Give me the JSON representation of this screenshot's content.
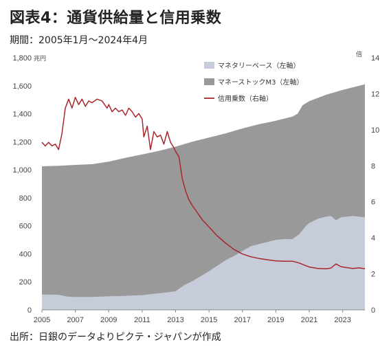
{
  "header": {
    "title": "図表4：通貨供給量と信用乗数",
    "subtitle": "期間：2005年1月～2024年4月"
  },
  "footer": {
    "source": "出所：日銀のデータよりピクテ・ジャパンが作成"
  },
  "chart_data": {
    "type": "area",
    "left_unit": "兆円",
    "right_unit": "倍",
    "x_ticks": [
      "2005",
      "2007",
      "2009",
      "2011",
      "2013",
      "2015",
      "2017",
      "2019",
      "2021",
      "2023"
    ],
    "left_ticks": [
      "0",
      "200",
      "400",
      "600",
      "800",
      "1,000",
      "1,200",
      "1,400",
      "1,600",
      "1,800"
    ],
    "right_ticks": [
      "0",
      "2",
      "4",
      "6",
      "8",
      "10",
      "12",
      "14"
    ],
    "xlim": [
      2005,
      2024.33
    ],
    "ylim_left": [
      0,
      1800
    ],
    "ylim_right": [
      0,
      14
    ],
    "legend_position": "top-right",
    "colors": {
      "base": "#c6ccd9",
      "m3": "#999999",
      "multiplier": "#a8262c"
    },
    "series": [
      {
        "name": "マネタリーベース（左軸）",
        "axis": "left",
        "style": "area",
        "points": [
          [
            2005,
            110
          ],
          [
            2006,
            108
          ],
          [
            2006.5,
            95
          ],
          [
            2007,
            92
          ],
          [
            2008,
            92
          ],
          [
            2009,
            97
          ],
          [
            2010,
            100
          ],
          [
            2011,
            105
          ],
          [
            2011.7,
            115
          ],
          [
            2012,
            118
          ],
          [
            2012.5,
            125
          ],
          [
            2013,
            133
          ],
          [
            2013.5,
            175
          ],
          [
            2014,
            205
          ],
          [
            2014.5,
            240
          ],
          [
            2015,
            275
          ],
          [
            2015.5,
            315
          ],
          [
            2016,
            355
          ],
          [
            2016.5,
            385
          ],
          [
            2017,
            420
          ],
          [
            2017.5,
            455
          ],
          [
            2018,
            470
          ],
          [
            2018.5,
            485
          ],
          [
            2019,
            500
          ],
          [
            2019.5,
            505
          ],
          [
            2020,
            505
          ],
          [
            2020.4,
            540
          ],
          [
            2020.8,
            600
          ],
          [
            2021,
            620
          ],
          [
            2021.5,
            650
          ],
          [
            2022,
            665
          ],
          [
            2022.3,
            670
          ],
          [
            2022.6,
            640
          ],
          [
            2022.9,
            660
          ],
          [
            2023.2,
            665
          ],
          [
            2023.6,
            670
          ],
          [
            2024.33,
            660
          ]
        ]
      },
      {
        "name": "マネーストックM3（左軸）",
        "axis": "left",
        "style": "area",
        "points": [
          [
            2005,
            1025
          ],
          [
            2006,
            1028
          ],
          [
            2007,
            1035
          ],
          [
            2008,
            1040
          ],
          [
            2009,
            1058
          ],
          [
            2010,
            1085
          ],
          [
            2011,
            1110
          ],
          [
            2012,
            1135
          ],
          [
            2013,
            1165
          ],
          [
            2014,
            1200
          ],
          [
            2015,
            1230
          ],
          [
            2016,
            1260
          ],
          [
            2017,
            1295
          ],
          [
            2018,
            1325
          ],
          [
            2019,
            1350
          ],
          [
            2020,
            1380
          ],
          [
            2020.3,
            1400
          ],
          [
            2020.6,
            1460
          ],
          [
            2021,
            1490
          ],
          [
            2022,
            1535
          ],
          [
            2023,
            1570
          ],
          [
            2024.33,
            1610
          ]
        ]
      },
      {
        "name": "信用乗数（右軸）",
        "axis": "right",
        "style": "line",
        "points": [
          [
            2005,
            9.3
          ],
          [
            2005.2,
            9.1
          ],
          [
            2005.4,
            9.3
          ],
          [
            2005.6,
            9.1
          ],
          [
            2005.8,
            9.2
          ],
          [
            2006,
            8.9
          ],
          [
            2006.2,
            9.8
          ],
          [
            2006.4,
            11.2
          ],
          [
            2006.6,
            11.7
          ],
          [
            2006.8,
            11.2
          ],
          [
            2007,
            11.8
          ],
          [
            2007.2,
            11.4
          ],
          [
            2007.4,
            11.7
          ],
          [
            2007.6,
            11.3
          ],
          [
            2007.8,
            11.6
          ],
          [
            2008,
            11.5
          ],
          [
            2008.3,
            11.7
          ],
          [
            2008.6,
            11.6
          ],
          [
            2008.9,
            11.2
          ],
          [
            2009,
            11.4
          ],
          [
            2009.2,
            11.0
          ],
          [
            2009.4,
            11.2
          ],
          [
            2009.6,
            11.0
          ],
          [
            2009.8,
            11.1
          ],
          [
            2010,
            10.8
          ],
          [
            2010.2,
            11.2
          ],
          [
            2010.4,
            11.0
          ],
          [
            2010.6,
            10.7
          ],
          [
            2010.8,
            10.9
          ],
          [
            2011,
            10.6
          ],
          [
            2011.1,
            9.6
          ],
          [
            2011.3,
            10.2
          ],
          [
            2011.5,
            8.9
          ],
          [
            2011.7,
            9.9
          ],
          [
            2011.9,
            9.6
          ],
          [
            2012.1,
            9.7
          ],
          [
            2012.3,
            9.2
          ],
          [
            2012.5,
            9.9
          ],
          [
            2012.7,
            9.3
          ],
          [
            2012.9,
            9.0
          ],
          [
            2013,
            8.8
          ],
          [
            2013.2,
            8.5
          ],
          [
            2013.4,
            7.3
          ],
          [
            2013.6,
            6.6
          ],
          [
            2013.8,
            6.1
          ],
          [
            2014,
            5.8
          ],
          [
            2014.3,
            5.4
          ],
          [
            2014.6,
            5.0
          ],
          [
            2015,
            4.6
          ],
          [
            2015.5,
            4.1
          ],
          [
            2016,
            3.7
          ],
          [
            2016.5,
            3.35
          ],
          [
            2017,
            3.1
          ],
          [
            2017.5,
            2.95
          ],
          [
            2018,
            2.85
          ],
          [
            2018.5,
            2.78
          ],
          [
            2019,
            2.72
          ],
          [
            2019.5,
            2.7
          ],
          [
            2020,
            2.7
          ],
          [
            2020.4,
            2.6
          ],
          [
            2020.8,
            2.45
          ],
          [
            2021,
            2.38
          ],
          [
            2021.5,
            2.3
          ],
          [
            2022,
            2.28
          ],
          [
            2022.3,
            2.32
          ],
          [
            2022.6,
            2.55
          ],
          [
            2022.9,
            2.4
          ],
          [
            2023.2,
            2.35
          ],
          [
            2023.6,
            2.3
          ],
          [
            2024,
            2.33
          ],
          [
            2024.33,
            2.28
          ]
        ]
      }
    ]
  }
}
